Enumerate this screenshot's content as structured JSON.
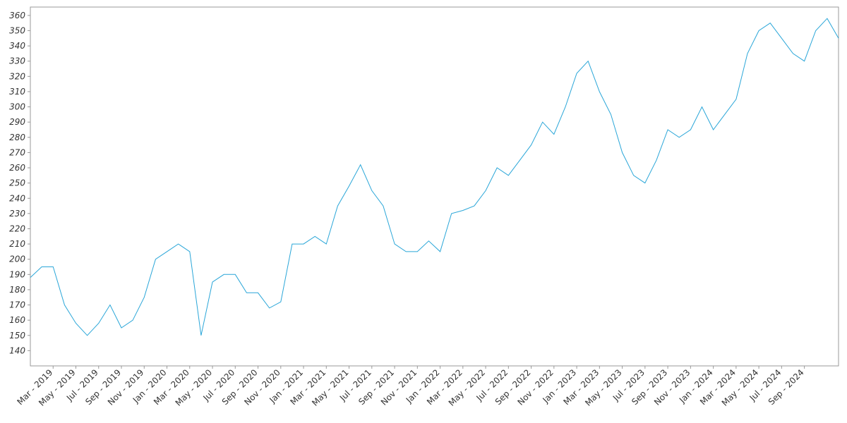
{
  "chart_data": {
    "type": "line",
    "x": [
      "2019-01",
      "2019-02",
      "2019-03",
      "2019-04",
      "2019-05",
      "2019-06",
      "2019-07",
      "2019-08",
      "2019-09",
      "2019-10",
      "2019-11",
      "2019-12",
      "2020-01",
      "2020-02",
      "2020-03",
      "2020-04",
      "2020-05",
      "2020-06",
      "2020-07",
      "2020-08",
      "2020-09",
      "2020-10",
      "2020-11",
      "2020-12",
      "2021-01",
      "2021-02",
      "2021-03",
      "2021-04",
      "2021-05",
      "2021-06",
      "2021-07",
      "2021-08",
      "2021-09",
      "2021-10",
      "2021-11",
      "2021-12",
      "2022-01",
      "2022-02",
      "2022-03",
      "2022-04",
      "2022-05",
      "2022-06",
      "2022-07",
      "2022-08",
      "2022-09",
      "2022-10",
      "2022-11",
      "2022-12",
      "2023-01",
      "2023-02",
      "2023-03",
      "2023-04",
      "2023-05",
      "2023-06",
      "2023-07",
      "2023-08",
      "2023-09",
      "2023-10",
      "2023-11",
      "2023-12",
      "2024-01",
      "2024-02",
      "2024-03",
      "2024-04",
      "2024-05",
      "2024-06",
      "2024-07",
      "2024-08",
      "2024-09",
      "2024-10",
      "2024-11",
      "2024-12"
    ],
    "series": [
      {
        "color": "#2aa6d8",
        "values": [
          188,
          195,
          195,
          170,
          158,
          150,
          158,
          170,
          155,
          160,
          175,
          200,
          205,
          210,
          205,
          150,
          185,
          190,
          190,
          178,
          178,
          168,
          172,
          210,
          210,
          215,
          210,
          235,
          248,
          262,
          245,
          235,
          210,
          205,
          205,
          212,
          205,
          230,
          232,
          235,
          245,
          260,
          255,
          265,
          275,
          290,
          282,
          300,
          322,
          330,
          310,
          295,
          270,
          255,
          250,
          265,
          285,
          280,
          285,
          300,
          285,
          295,
          305,
          335,
          350,
          355,
          345,
          335,
          330,
          350,
          358,
          345
        ]
      }
    ],
    "xlim": [
      "2019-01",
      "2024-12"
    ],
    "xticks": [
      {
        "value": "2019-03",
        "label": "Mar - 2019"
      },
      {
        "value": "2019-05",
        "label": "May - 2019"
      },
      {
        "value": "2019-07",
        "label": "Jul - 2019"
      },
      {
        "value": "2019-09",
        "label": "Sep - 2019"
      },
      {
        "value": "2019-11",
        "label": "Nov - 2019"
      },
      {
        "value": "2020-01",
        "label": "Jan - 2020"
      },
      {
        "value": "2020-03",
        "label": "Mar - 2020"
      },
      {
        "value": "2020-05",
        "label": "May - 2020"
      },
      {
        "value": "2020-07",
        "label": "Jul - 2020"
      },
      {
        "value": "2020-09",
        "label": "Sep - 2020"
      },
      {
        "value": "2020-11",
        "label": "Nov - 2020"
      },
      {
        "value": "2021-01",
        "label": "Jan - 2021"
      },
      {
        "value": "2021-03",
        "label": "Mar - 2021"
      },
      {
        "value": "2021-05",
        "label": "May - 2021"
      },
      {
        "value": "2021-07",
        "label": "Jul - 2021"
      },
      {
        "value": "2021-09",
        "label": "Sep - 2021"
      },
      {
        "value": "2021-11",
        "label": "Nov - 2021"
      },
      {
        "value": "2022-01",
        "label": "Jan - 2022"
      },
      {
        "value": "2022-03",
        "label": "Mar - 2022"
      },
      {
        "value": "2022-05",
        "label": "May - 2022"
      },
      {
        "value": "2022-07",
        "label": "Jul - 2022"
      },
      {
        "value": "2022-09",
        "label": "Sep - 2022"
      },
      {
        "value": "2022-11",
        "label": "Nov - 2022"
      },
      {
        "value": "2023-01",
        "label": "Jan - 2023"
      },
      {
        "value": "2023-03",
        "label": "Mar - 2023"
      },
      {
        "value": "2023-05",
        "label": "May - 2023"
      },
      {
        "value": "2023-07",
        "label": "Jul - 2023"
      },
      {
        "value": "2023-09",
        "label": "Sep - 2023"
      },
      {
        "value": "2023-11",
        "label": "Nov - 2023"
      },
      {
        "value": "2024-01",
        "label": "Jan - 2024"
      },
      {
        "value": "2024-03",
        "label": "Mar - 2024"
      },
      {
        "value": "2024-05",
        "label": "May - 2024"
      },
      {
        "value": "2024-07",
        "label": "Jul - 2024"
      },
      {
        "value": "2024-09",
        "label": "Sep - 2024"
      }
    ],
    "ylim": [
      130,
      365.5
    ],
    "yticks": [
      140,
      150,
      160,
      170,
      180,
      190,
      200,
      210,
      220,
      230,
      240,
      250,
      260,
      270,
      280,
      290,
      300,
      310,
      320,
      330,
      340,
      350,
      360
    ],
    "grid": false
  }
}
